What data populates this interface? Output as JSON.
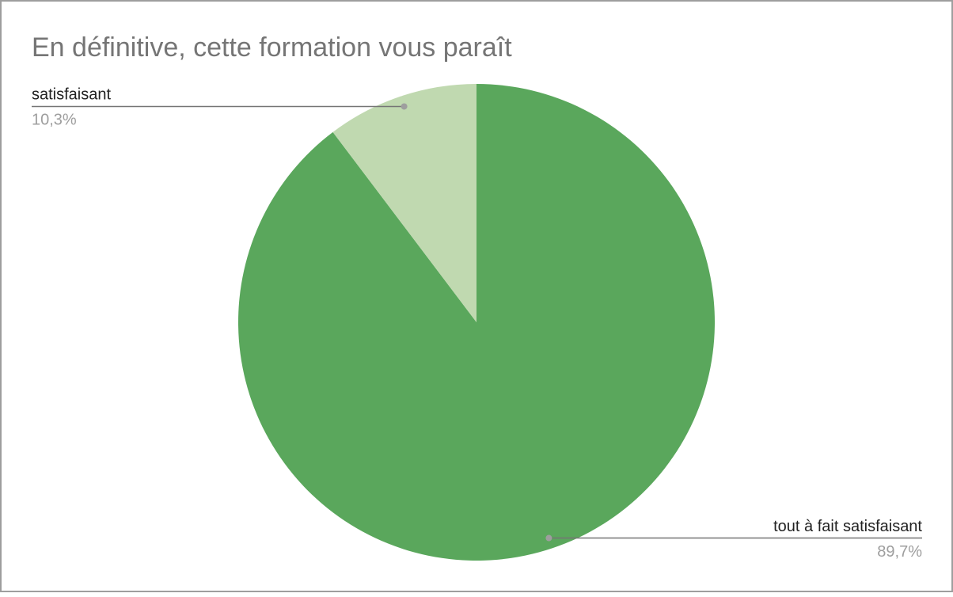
{
  "chart_data": {
    "type": "pie",
    "title": "En définitive, cette formation vous paraît",
    "categories": [
      "tout à fait satisfaisant",
      "satisfaisant"
    ],
    "values": [
      89.7,
      10.3
    ],
    "value_labels": [
      "89,7%",
      "10,3%"
    ],
    "colors": [
      "#5aa75c",
      "#c0d9b0"
    ]
  }
}
